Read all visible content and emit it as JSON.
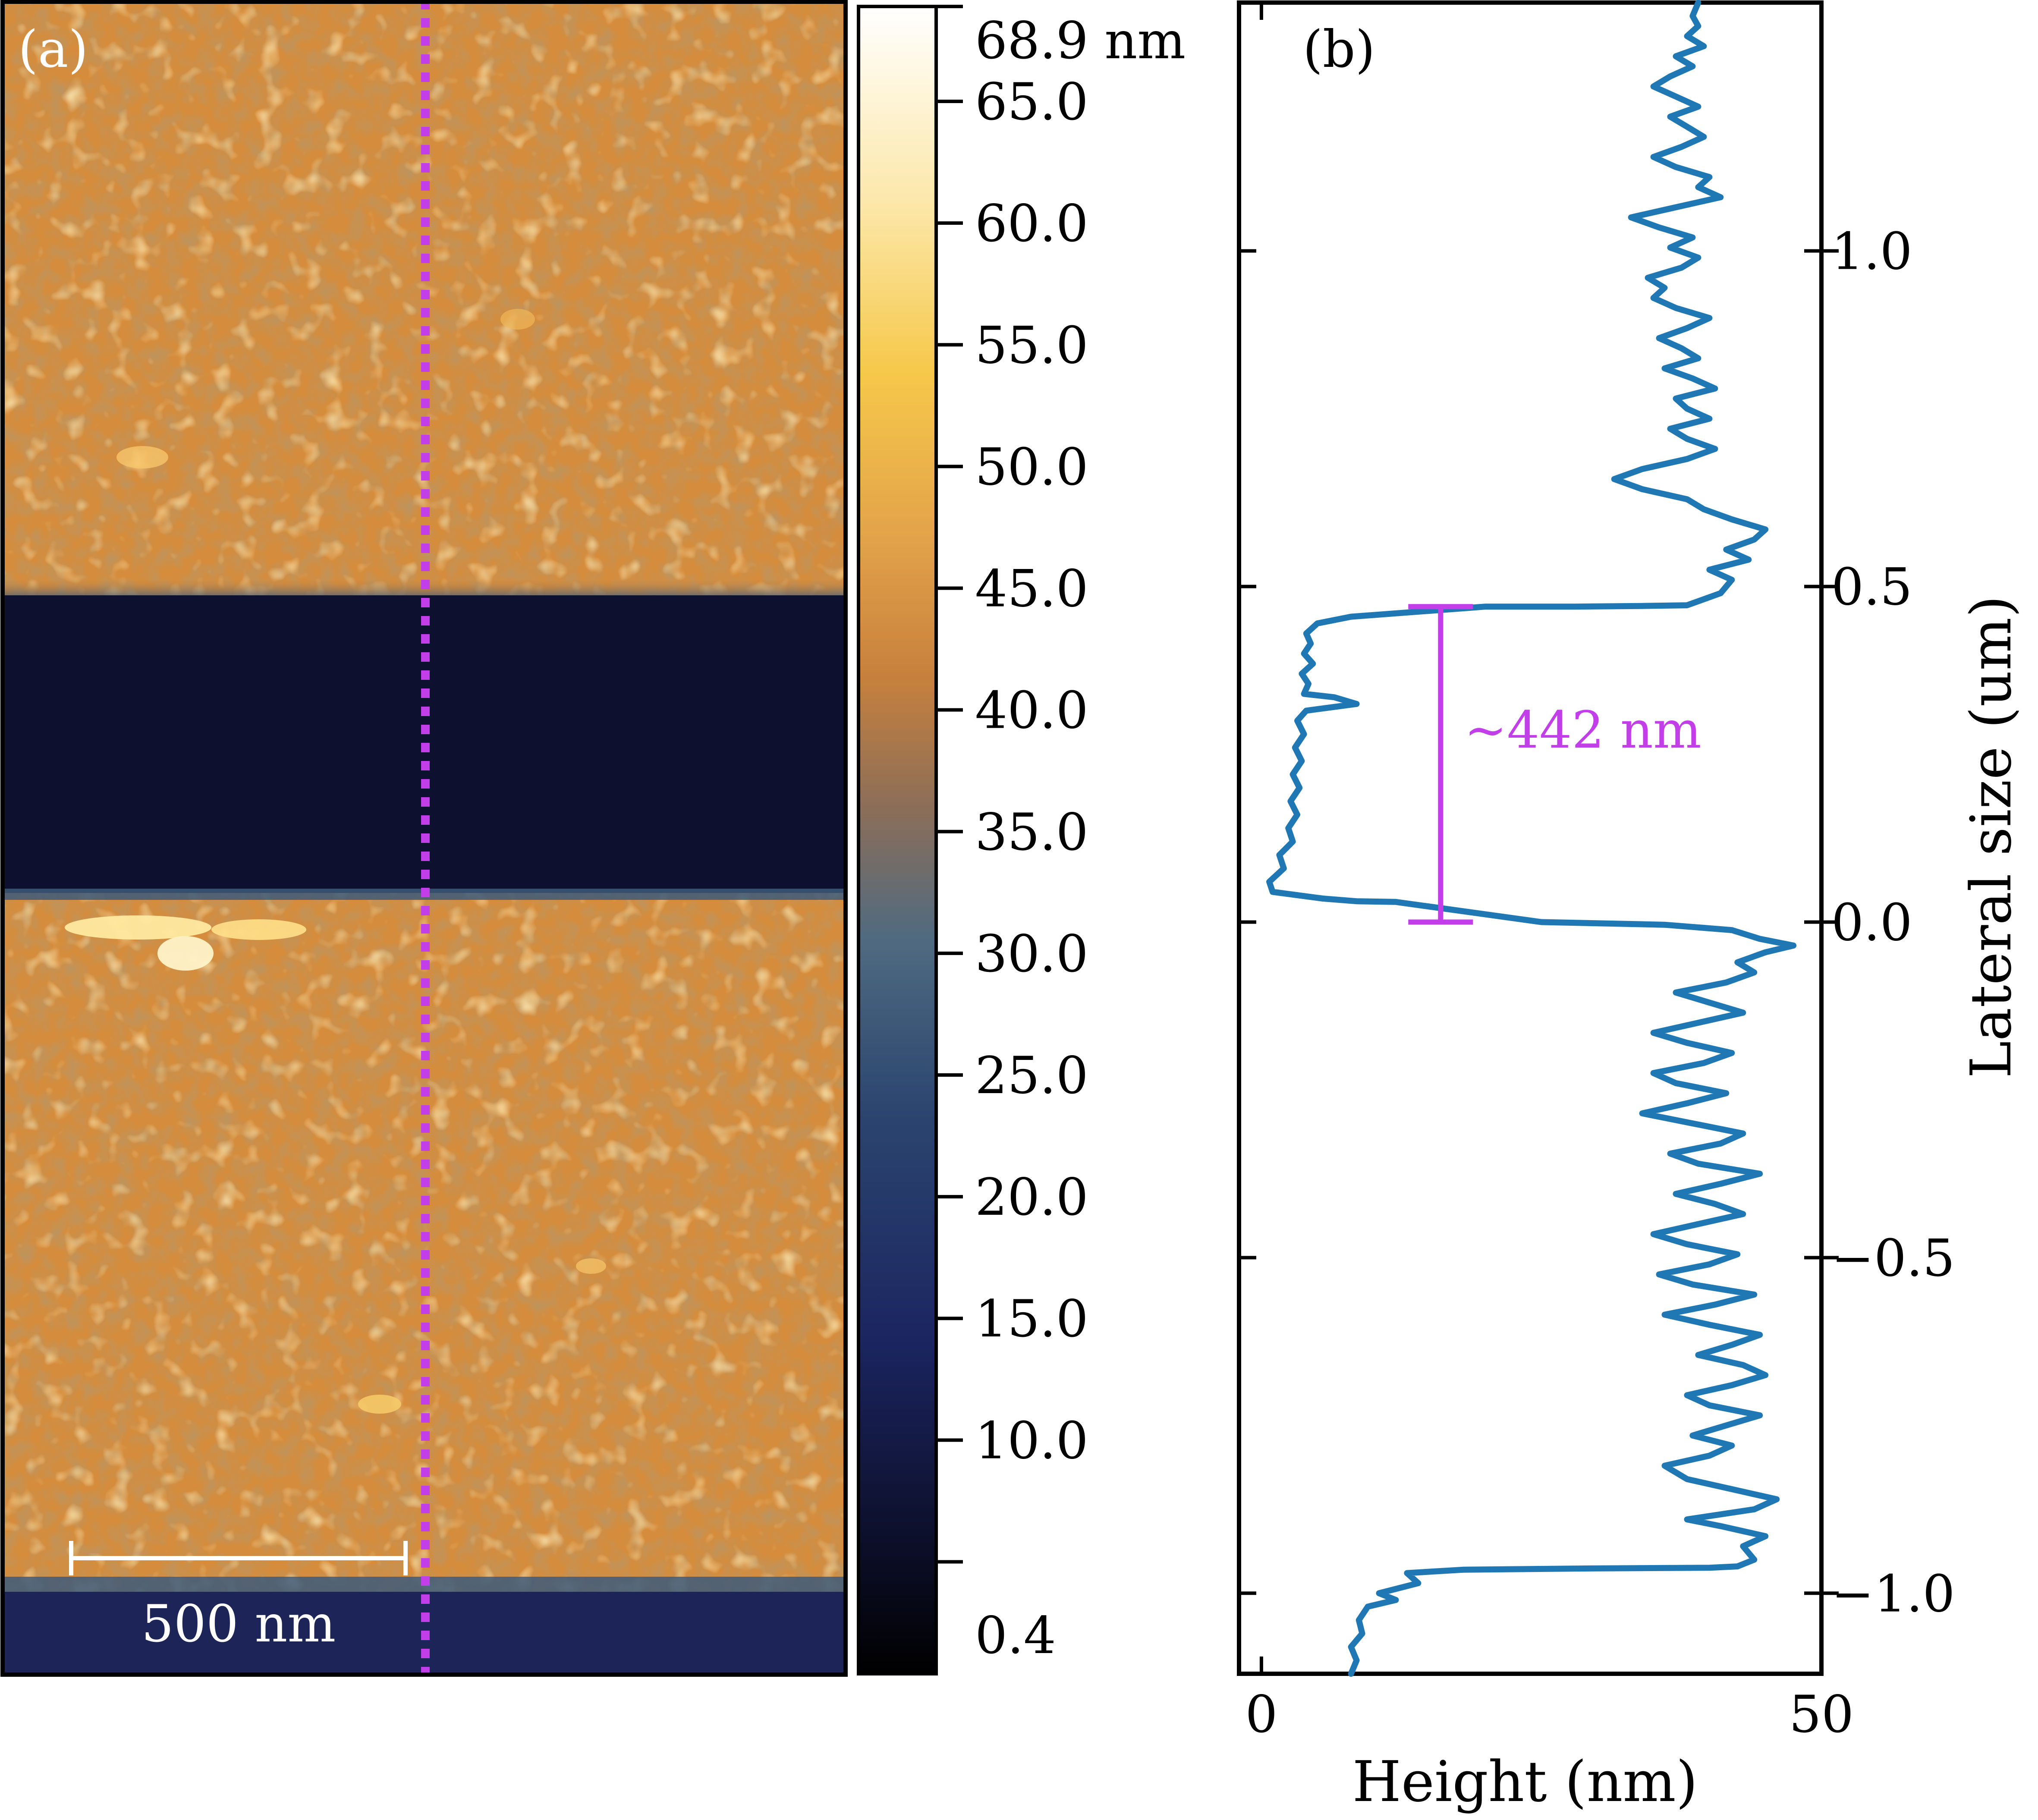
{
  "chart_data": [
    {
      "type": "heatmap",
      "panel_label": "(a)",
      "scale_bar_label": "500 nm",
      "colorbar": {
        "top_label": "68.9 nm",
        "ticks": [
          "65.0",
          "60.0",
          "55.0",
          "50.0",
          "45.0",
          "40.0",
          "35.0",
          "30.0",
          "25.0",
          "20.0",
          "15.0",
          "10.0"
        ],
        "bottom_label": "0.4",
        "range": [
          0.4,
          68.9
        ]
      },
      "colors": {
        "film": "#d58c3c",
        "film_highlight": "#ffe08a",
        "trench": "#0e1030",
        "bottom_strip": "#1c2458",
        "edge": "#3d5a7a",
        "profile_line": "#c23ee8"
      }
    },
    {
      "type": "line",
      "panel_label": "(b)",
      "xlabel": "Height (nm)",
      "ylabel": "Lateral size (um)",
      "xlim": [
        -2,
        50
      ],
      "ylim": [
        -1.12,
        1.37
      ],
      "xticks": [
        "0",
        "50"
      ],
      "yticks": [
        "1.0",
        "0.5",
        "0.0",
        "−0.5",
        "−1.0"
      ],
      "annotation": "~442 nm",
      "annotation_colour": "#c23ee8",
      "line_colour": "#1f77b4",
      "series": [
        {
          "points": [
            [
              8.0,
              -1.12
            ],
            [
              8.5,
              -1.1
            ],
            [
              8.0,
              -1.08
            ],
            [
              9.0,
              -1.06
            ],
            [
              8.7,
              -1.04
            ],
            [
              9.5,
              -1.02
            ],
            [
              12.0,
              -1.01
            ],
            [
              10.5,
              -1.0
            ],
            [
              14.0,
              -0.985
            ],
            [
              13.0,
              -0.97
            ],
            [
              18.0,
              -0.965
            ],
            [
              30.0,
              -0.963
            ],
            [
              40.0,
              -0.962
            ],
            [
              42.5,
              -0.96
            ],
            [
              44.0,
              -0.95
            ],
            [
              43.0,
              -0.93
            ],
            [
              45.0,
              -0.915
            ],
            [
              41.0,
              -0.9
            ],
            [
              38.0,
              -0.89
            ],
            [
              44.0,
              -0.875
            ],
            [
              46.0,
              -0.86
            ],
            [
              42.0,
              -0.845
            ],
            [
              38.0,
              -0.83
            ],
            [
              36.0,
              -0.81
            ],
            [
              40.0,
              -0.795
            ],
            [
              42.0,
              -0.78
            ],
            [
              38.5,
              -0.765
            ],
            [
              41.5,
              -0.75
            ],
            [
              44.5,
              -0.735
            ],
            [
              40.0,
              -0.72
            ],
            [
              38.0,
              -0.705
            ],
            [
              42.0,
              -0.69
            ],
            [
              45.0,
              -0.675
            ],
            [
              43.0,
              -0.66
            ],
            [
              39.0,
              -0.645
            ],
            [
              42.0,
              -0.63
            ],
            [
              44.5,
              -0.615
            ],
            [
              40.0,
              -0.6
            ],
            [
              36.0,
              -0.585
            ],
            [
              40.5,
              -0.57
            ],
            [
              44.0,
              -0.555
            ],
            [
              38.5,
              -0.54
            ],
            [
              35.5,
              -0.525
            ],
            [
              40.0,
              -0.51
            ],
            [
              42.5,
              -0.495
            ],
            [
              38.0,
              -0.48
            ],
            [
              35.0,
              -0.465
            ],
            [
              39.0,
              -0.45
            ],
            [
              43.0,
              -0.435
            ],
            [
              40.5,
              -0.42
            ],
            [
              37.0,
              -0.405
            ],
            [
              41.0,
              -0.39
            ],
            [
              44.5,
              -0.375
            ],
            [
              39.0,
              -0.36
            ],
            [
              36.5,
              -0.345
            ],
            [
              41.0,
              -0.33
            ],
            [
              43.0,
              -0.315
            ],
            [
              38.5,
              -0.3
            ],
            [
              34.0,
              -0.285
            ],
            [
              38.0,
              -0.27
            ],
            [
              41.5,
              -0.255
            ],
            [
              37.0,
              -0.24
            ],
            [
              35.0,
              -0.225
            ],
            [
              39.5,
              -0.21
            ],
            [
              42.0,
              -0.195
            ],
            [
              38.0,
              -0.18
            ],
            [
              35.0,
              -0.165
            ],
            [
              39.0,
              -0.15
            ],
            [
              43.0,
              -0.135
            ],
            [
              40.0,
              -0.12
            ],
            [
              37.0,
              -0.105
            ],
            [
              41.5,
              -0.09
            ],
            [
              44.0,
              -0.075
            ],
            [
              42.5,
              -0.06
            ],
            [
              45.0,
              -0.045
            ],
            [
              47.5,
              -0.035
            ],
            [
              44.5,
              -0.025
            ],
            [
              42.0,
              -0.012
            ],
            [
              36.0,
              -0.004
            ],
            [
              25.0,
              0.0
            ],
            [
              12.0,
              0.03
            ],
            [
              8.5,
              0.031
            ],
            [
              5.5,
              0.035
            ],
            [
              1.0,
              0.045
            ],
            [
              0.7,
              0.06
            ],
            [
              2.0,
              0.08
            ],
            [
              1.6,
              0.1
            ],
            [
              2.8,
              0.12
            ],
            [
              2.4,
              0.14
            ],
            [
              3.2,
              0.16
            ],
            [
              2.6,
              0.18
            ],
            [
              3.4,
              0.2
            ],
            [
              2.8,
              0.22
            ],
            [
              3.6,
              0.24
            ],
            [
              3.0,
              0.26
            ],
            [
              3.8,
              0.28
            ],
            [
              3.2,
              0.3
            ],
            [
              4.0,
              0.315
            ],
            [
              8.5,
              0.325
            ],
            [
              6.5,
              0.335
            ],
            [
              3.8,
              0.34
            ],
            [
              4.2,
              0.355
            ],
            [
              3.6,
              0.37
            ],
            [
              4.6,
              0.385
            ],
            [
              3.8,
              0.4
            ],
            [
              4.4,
              0.415
            ],
            [
              4.0,
              0.43
            ],
            [
              5.0,
              0.445
            ],
            [
              8.0,
              0.455
            ],
            [
              12.0,
              0.46
            ],
            [
              20.0,
              0.47
            ],
            [
              28.0,
              0.47
            ],
            [
              34.0,
              0.471
            ],
            [
              38.0,
              0.472
            ],
            [
              41.0,
              0.49
            ],
            [
              42.0,
              0.51
            ],
            [
              40.0,
              0.525
            ],
            [
              43.5,
              0.54
            ],
            [
              41.5,
              0.555
            ],
            [
              44.0,
              0.57
            ],
            [
              45.0,
              0.585
            ],
            [
              42.0,
              0.6
            ],
            [
              39.5,
              0.615
            ],
            [
              38.0,
              0.63
            ],
            [
              34.0,
              0.645
            ],
            [
              31.5,
              0.66
            ],
            [
              34.0,
              0.675
            ],
            [
              38.0,
              0.69
            ],
            [
              40.5,
              0.705
            ],
            [
              38.0,
              0.72
            ],
            [
              36.5,
              0.735
            ],
            [
              40.0,
              0.75
            ],
            [
              38.0,
              0.765
            ],
            [
              37.0,
              0.78
            ],
            [
              40.5,
              0.795
            ],
            [
              38.5,
              0.81
            ],
            [
              36.0,
              0.825
            ],
            [
              39.0,
              0.84
            ],
            [
              37.5,
              0.855
            ],
            [
              35.5,
              0.87
            ],
            [
              38.0,
              0.885
            ],
            [
              40.0,
              0.9
            ],
            [
              37.0,
              0.915
            ],
            [
              35.0,
              0.93
            ],
            [
              36.0,
              0.945
            ],
            [
              34.5,
              0.96
            ],
            [
              37.5,
              0.975
            ],
            [
              39.0,
              0.99
            ],
            [
              36.5,
              1.005
            ],
            [
              38.5,
              1.02
            ],
            [
              35.5,
              1.035
            ],
            [
              33.0,
              1.05
            ],
            [
              37.0,
              1.065
            ],
            [
              41.0,
              1.08
            ],
            [
              39.0,
              1.095
            ],
            [
              40.0,
              1.11
            ],
            [
              37.0,
              1.125
            ],
            [
              35.0,
              1.14
            ],
            [
              37.5,
              1.155
            ],
            [
              39.5,
              1.17
            ],
            [
              38.0,
              1.185
            ],
            [
              36.5,
              1.2
            ],
            [
              39.0,
              1.215
            ],
            [
              37.0,
              1.23
            ],
            [
              35.0,
              1.245
            ],
            [
              36.5,
              1.26
            ],
            [
              38.5,
              1.275
            ],
            [
              37.0,
              1.29
            ],
            [
              39.5,
              1.305
            ],
            [
              38.0,
              1.32
            ],
            [
              39.0,
              1.335
            ],
            [
              38.5,
              1.35
            ],
            [
              39.0,
              1.37
            ]
          ]
        }
      ]
    }
  ]
}
